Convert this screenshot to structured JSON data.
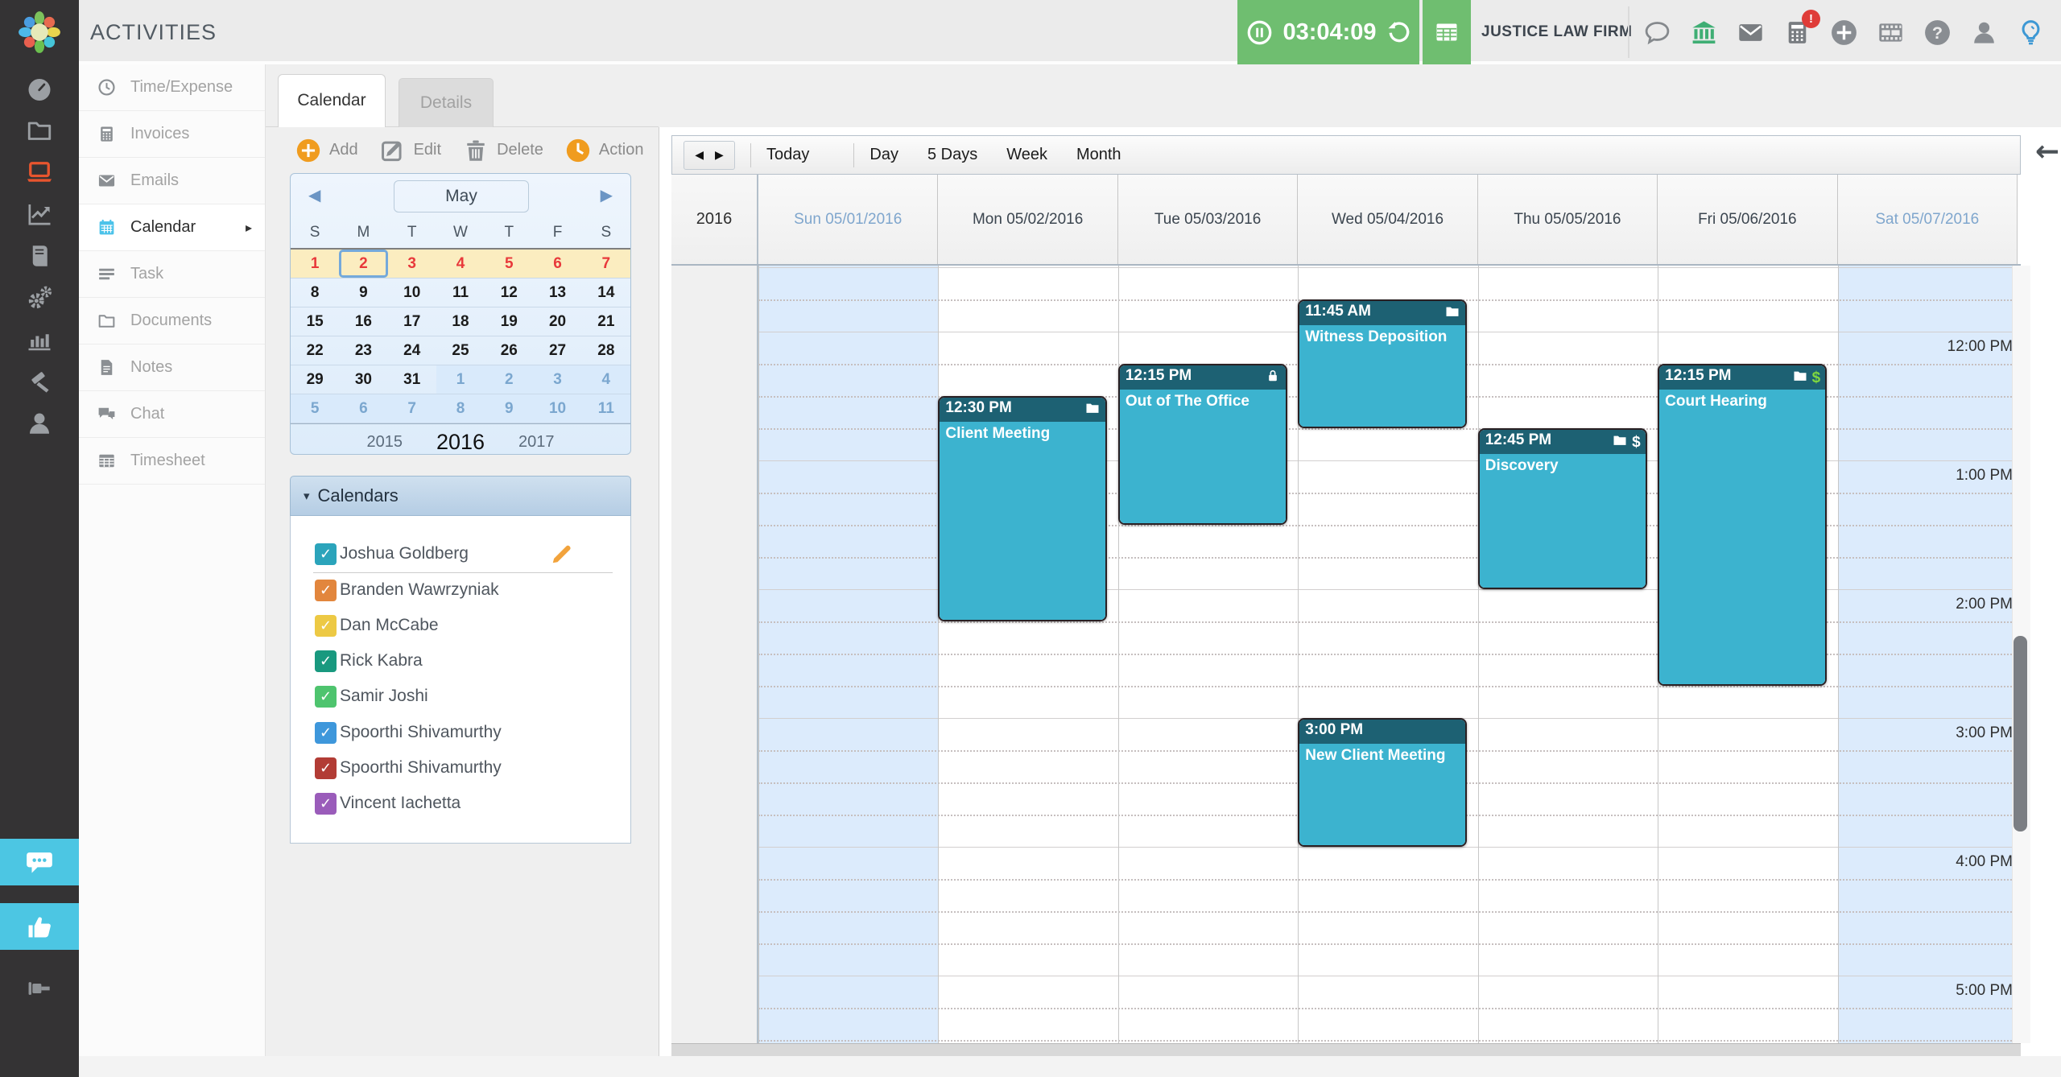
{
  "topbar": {
    "title": "ACTIVITIES",
    "timer_time": "03:04:09",
    "firm_name": "JUSTICE LAW FIRM",
    "badge": "!",
    "right_icons": [
      {
        "icon": "speech-bubble",
        "color": "#85898d"
      },
      {
        "icon": "bank",
        "color": "#3fae74"
      },
      {
        "icon": "mail",
        "color": "#797d81"
      },
      {
        "icon": "calculator",
        "color": "#797d81",
        "badge": "!"
      },
      {
        "icon": "plus-circle",
        "color": "#898d92"
      },
      {
        "icon": "film",
        "color": "#898d92"
      },
      {
        "icon": "help",
        "color": "#898d92"
      },
      {
        "icon": "user",
        "color": "#898d92"
      },
      {
        "icon": "lightbulb",
        "color": "#3d98d4"
      }
    ]
  },
  "sidebar": {
    "items": [
      {
        "icon": "dashboard"
      },
      {
        "icon": "folder"
      },
      {
        "icon": "laptop",
        "active": true
      },
      {
        "icon": "trend-chart"
      },
      {
        "icon": "book"
      },
      {
        "icon": "gears"
      },
      {
        "icon": "bar-chart"
      },
      {
        "icon": "gavel"
      },
      {
        "icon": "user"
      }
    ],
    "bottom": [
      {
        "icon": "chat-bubble",
        "highlight": true
      },
      {
        "icon": "thumbs-up",
        "highlight": true
      },
      {
        "icon": "pin",
        "highlight": false
      }
    ]
  },
  "subnav": {
    "items": [
      {
        "label": "Time/Expense",
        "icon": "clock"
      },
      {
        "label": "Invoices",
        "icon": "calculator"
      },
      {
        "label": "Emails",
        "icon": "mail"
      },
      {
        "label": "Calendar",
        "icon": "calendar",
        "active": true,
        "chevron": "▸"
      },
      {
        "label": "Task",
        "icon": "task-list"
      },
      {
        "label": "Documents",
        "icon": "folder"
      },
      {
        "label": "Notes",
        "icon": "note"
      },
      {
        "label": "Chat",
        "icon": "chat"
      },
      {
        "label": "Timesheet",
        "icon": "table"
      }
    ]
  },
  "tabs": [
    {
      "label": "Calendar",
      "active": true
    },
    {
      "label": "Details",
      "active": false
    }
  ],
  "toolbar": {
    "buttons": [
      {
        "label": "Add",
        "icon": "plus-circle",
        "accent": true
      },
      {
        "label": "Edit",
        "icon": "pencil-square",
        "accent": false
      },
      {
        "label": "Delete",
        "icon": "trash",
        "accent": false
      },
      {
        "label": "Action",
        "icon": "clock-circle",
        "accent": true
      }
    ]
  },
  "mini_calendar": {
    "month": "May",
    "prev": "◀",
    "next": "▶",
    "day_initials": [
      "S",
      "M",
      "T",
      "W",
      "T",
      "F",
      "S"
    ],
    "weeks": [
      [
        {
          "d": 1,
          "red": 1
        },
        {
          "d": 2,
          "red": 1,
          "selected": 1
        },
        {
          "d": 3,
          "red": 1
        },
        {
          "d": 4,
          "red": 1
        },
        {
          "d": 5,
          "red": 1
        },
        {
          "d": 6,
          "red": 1
        },
        {
          "d": 7,
          "red": 1
        }
      ],
      [
        {
          "d": 8
        },
        {
          "d": 9
        },
        {
          "d": 10
        },
        {
          "d": 11
        },
        {
          "d": 12
        },
        {
          "d": 13
        },
        {
          "d": 14
        }
      ],
      [
        {
          "d": 15
        },
        {
          "d": 16
        },
        {
          "d": 17
        },
        {
          "d": 18
        },
        {
          "d": 19
        },
        {
          "d": 20
        },
        {
          "d": 21
        }
      ],
      [
        {
          "d": 22
        },
        {
          "d": 23
        },
        {
          "d": 24
        },
        {
          "d": 25
        },
        {
          "d": 26
        },
        {
          "d": 27
        },
        {
          "d": 28
        }
      ],
      [
        {
          "d": 29
        },
        {
          "d": 30
        },
        {
          "d": 31
        },
        {
          "d": 1,
          "muted": 1
        },
        {
          "d": 2,
          "muted": 1
        },
        {
          "d": 3,
          "muted": 1
        },
        {
          "d": 4,
          "muted": 1
        }
      ],
      [
        {
          "d": 5,
          "muted": 1
        },
        {
          "d": 6,
          "muted": 1
        },
        {
          "d": 7,
          "muted": 1
        },
        {
          "d": 8,
          "muted": 1
        },
        {
          "d": 9,
          "muted": 1
        },
        {
          "d": 10,
          "muted": 1
        },
        {
          "d": 11,
          "muted": 1
        }
      ]
    ],
    "years": [
      "2015",
      "2016",
      "2017"
    ],
    "current_year": "2016"
  },
  "calendars_panel": {
    "title": "Calendars",
    "collapse_glyph": "▾",
    "people": [
      {
        "name": "Joshua Goldberg",
        "color": "#2ba4bb",
        "checked": true,
        "editable": true,
        "divider": true
      },
      {
        "name": "Branden Wawrzyniak",
        "color": "#e2863d",
        "checked": true
      },
      {
        "name": "Dan McCabe",
        "color": "#edc944",
        "checked": true
      },
      {
        "name": "Rick Kabra",
        "color": "#19997f",
        "checked": true
      },
      {
        "name": "Samir Joshi",
        "color": "#4ec46e",
        "checked": true
      },
      {
        "name": "Spoorthi Shivamurthy",
        "color": "#3e97db",
        "checked": true
      },
      {
        "name": "Spoorthi Shivamurthy",
        "color": "#b23c35",
        "checked": true
      },
      {
        "name": "Vincent Iachetta",
        "color": "#9a5cba",
        "checked": true
      }
    ]
  },
  "calendar_view": {
    "controls": {
      "prev": "◀",
      "next": "▶",
      "today": "Today",
      "modes": [
        "Day",
        "5 Days",
        "Week",
        "Month"
      ]
    },
    "back_arrow": "←",
    "year_label": "2016",
    "days": [
      {
        "label": "Sun 05/01/2016",
        "weekend": true
      },
      {
        "label": "Mon 05/02/2016",
        "weekend": false
      },
      {
        "label": "Tue 05/03/2016",
        "weekend": false
      },
      {
        "label": "Wed 05/04/2016",
        "weekend": false
      },
      {
        "label": "Thu 05/05/2016",
        "weekend": false
      },
      {
        "label": "Fri 05/06/2016",
        "weekend": false
      },
      {
        "label": "Sat 05/07/2016",
        "weekend": true
      }
    ],
    "hour_labels": [
      {
        "label": "12:00 PM",
        "min": 720
      },
      {
        "label": "1:00 PM",
        "min": 780
      },
      {
        "label": "2:00 PM",
        "min": 840
      },
      {
        "label": "3:00 PM",
        "min": 900
      },
      {
        "label": "4:00 PM",
        "min": 960
      },
      {
        "label": "5:00 PM",
        "min": 1020
      }
    ],
    "view_start_min": 690,
    "view_end_min": 1052,
    "events": [
      {
        "day": 1,
        "time": "12:30 PM",
        "title": "Client Meeting",
        "icons": [
          "folder"
        ],
        "start": 750,
        "end": 855
      },
      {
        "day": 2,
        "time": "12:15 PM",
        "title": "Out of The Office",
        "icons": [
          "lock"
        ],
        "start": 735,
        "end": 810
      },
      {
        "day": 3,
        "time": "11:45 AM",
        "title": "Witness Deposition",
        "icons": [
          "folder"
        ],
        "start": 705,
        "end": 765
      },
      {
        "day": 3,
        "time": "3:00 PM",
        "title": "New Client Meeting",
        "icons": [],
        "start": 900,
        "end": 960
      },
      {
        "day": 4,
        "time": "12:45 PM",
        "title": "Discovery",
        "icons": [
          "folder",
          "dollar"
        ],
        "start": 765,
        "end": 840
      },
      {
        "day": 5,
        "time": "12:15 PM",
        "title": "Court Hearing",
        "icons": [
          "folder",
          "dollar-green"
        ],
        "start": 735,
        "end": 885
      }
    ],
    "event_colors": {
      "header": "#1d6173",
      "body": "#3cb3cf",
      "dollar_green": "#7fd83f"
    }
  }
}
